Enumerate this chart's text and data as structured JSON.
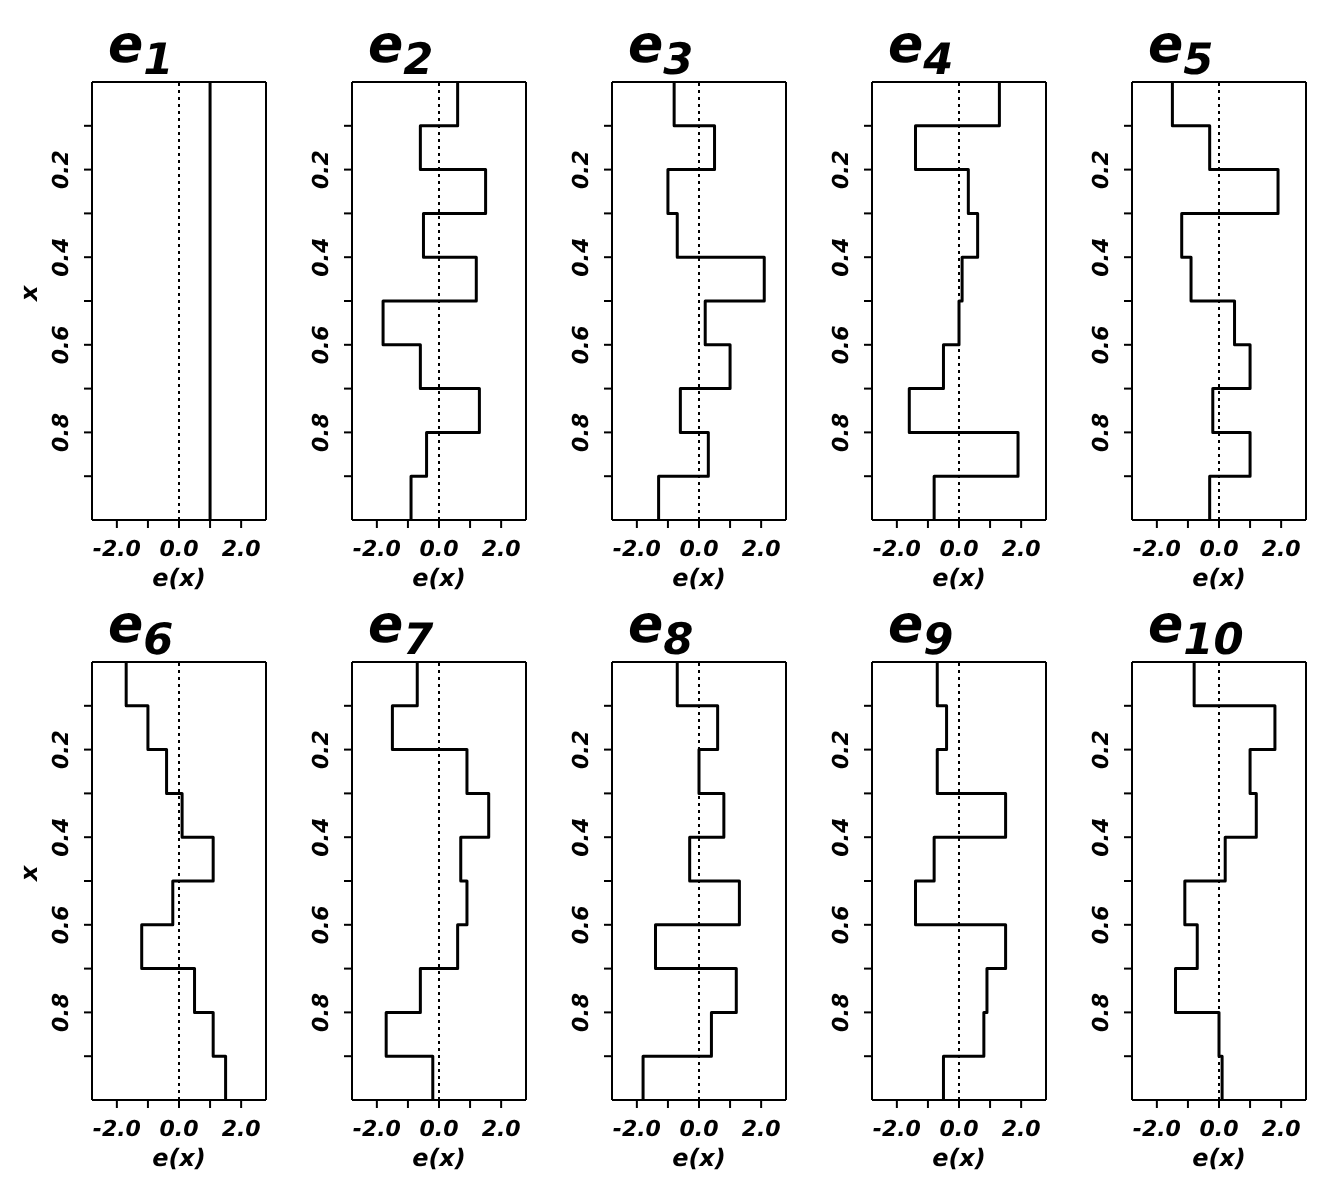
{
  "chart_data": [
    {
      "type": "step",
      "title": "e$_{1}$",
      "xlabel": "e(x)",
      "ylabel": "x",
      "orientation": "horizontal",
      "color": "#000000",
      "marker": "none",
      "x": [
        0,
        0.1,
        0.2,
        0.3,
        0.4,
        0.5,
        0.6,
        0.7,
        0.8,
        0.9,
        1.0
      ],
      "values": [
        1.0,
        1.0,
        1.0,
        1.0,
        1.0,
        1.0,
        1.0,
        1.0,
        1.0,
        1.0,
        1.0
      ],
      "xlim": [
        -2.8,
        2.8
      ],
      "xticks": [
        {
          "value": -2,
          "label": "-2.0"
        },
        {
          "value": -1,
          "label": null
        },
        {
          "value": 0,
          "label": "0.0"
        },
        {
          "value": 1,
          "label": null
        },
        {
          "value": 2,
          "label": "2.0"
        }
      ],
      "ylim": [
        1,
        0
      ],
      "yticks": [
        {
          "value": 0.1,
          "label": null
        },
        0.2,
        {
          "value": 0.3,
          "label": null
        },
        0.4,
        {
          "value": 0.5,
          "label": null
        },
        0.6,
        {
          "value": 0.7,
          "label": null
        },
        0.8,
        {
          "value": 0.9,
          "label": null
        }
      ],
      "ref_lines": [
        {
          "axis": "x",
          "value": 0,
          "line_style": "dotted"
        }
      ]
    },
    {
      "type": "step",
      "title": "e$_{2}$",
      "xlabel": "e(x)",
      "orientation": "horizontal",
      "color": "#000000",
      "marker": "none",
      "x": [
        0,
        0.1,
        0.2,
        0.3,
        0.4,
        0.5,
        0.6,
        0.7,
        0.8,
        0.9,
        1.0
      ],
      "values": [
        0.6,
        -0.6,
        1.5,
        -0.5,
        1.2,
        -1.8,
        -0.6,
        1.3,
        -0.4,
        -0.9,
        -0.9
      ],
      "xlim": [
        -2.8,
        2.8
      ],
      "xticks": [
        {
          "value": -2,
          "label": "-2.0"
        },
        {
          "value": -1,
          "label": null
        },
        {
          "value": 0,
          "label": "0.0"
        },
        {
          "value": 1,
          "label": null
        },
        {
          "value": 2,
          "label": "2.0"
        }
      ],
      "ylim": [
        1,
        0
      ],
      "yticks": [
        {
          "value": 0.1,
          "label": null
        },
        0.2,
        {
          "value": 0.3,
          "label": null
        },
        0.4,
        {
          "value": 0.5,
          "label": null
        },
        0.6,
        {
          "value": 0.7,
          "label": null
        },
        0.8,
        {
          "value": 0.9,
          "label": null
        }
      ],
      "ref_lines": [
        {
          "axis": "x",
          "value": 0,
          "line_style": "dotted"
        }
      ]
    },
    {
      "type": "step",
      "title": "e$_{3}$",
      "xlabel": "e(x)",
      "orientation": "horizontal",
      "color": "#000000",
      "marker": "none",
      "x": [
        0,
        0.1,
        0.2,
        0.3,
        0.4,
        0.5,
        0.6,
        0.7,
        0.8,
        0.9,
        1.0
      ],
      "values": [
        -0.8,
        0.5,
        -1.0,
        -0.7,
        2.1,
        0.2,
        1.0,
        -0.6,
        0.3,
        -1.3,
        -1.3
      ],
      "xlim": [
        -2.8,
        2.8
      ],
      "xticks": [
        {
          "value": -2,
          "label": "-2.0"
        },
        {
          "value": -1,
          "label": null
        },
        {
          "value": 0,
          "label": "0.0"
        },
        {
          "value": 1,
          "label": null
        },
        {
          "value": 2,
          "label": "2.0"
        }
      ],
      "ylim": [
        1,
        0
      ],
      "yticks": [
        {
          "value": 0.1,
          "label": null
        },
        0.2,
        {
          "value": 0.3,
          "label": null
        },
        0.4,
        {
          "value": 0.5,
          "label": null
        },
        0.6,
        {
          "value": 0.7,
          "label": null
        },
        0.8,
        {
          "value": 0.9,
          "label": null
        }
      ],
      "ref_lines": [
        {
          "axis": "x",
          "value": 0,
          "line_style": "dotted"
        }
      ]
    },
    {
      "type": "step",
      "title": "e$_{4}$",
      "xlabel": "e(x)",
      "orientation": "horizontal",
      "color": "#000000",
      "marker": "none",
      "x": [
        0,
        0.1,
        0.2,
        0.3,
        0.4,
        0.5,
        0.6,
        0.7,
        0.8,
        0.9,
        1.0
      ],
      "values": [
        1.3,
        -1.4,
        0.3,
        0.6,
        0.1,
        0.0,
        -0.5,
        -1.6,
        1.9,
        -0.8,
        -0.8
      ],
      "xlim": [
        -2.8,
        2.8
      ],
      "xticks": [
        {
          "value": -2,
          "label": "-2.0"
        },
        {
          "value": -1,
          "label": null
        },
        {
          "value": 0,
          "label": "0.0"
        },
        {
          "value": 1,
          "label": null
        },
        {
          "value": 2,
          "label": "2.0"
        }
      ],
      "ylim": [
        1,
        0
      ],
      "yticks": [
        {
          "value": 0.1,
          "label": null
        },
        0.2,
        {
          "value": 0.3,
          "label": null
        },
        0.4,
        {
          "value": 0.5,
          "label": null
        },
        0.6,
        {
          "value": 0.7,
          "label": null
        },
        0.8,
        {
          "value": 0.9,
          "label": null
        }
      ],
      "ref_lines": [
        {
          "axis": "x",
          "value": 0,
          "line_style": "dotted"
        }
      ]
    },
    {
      "type": "step",
      "title": "e$_{5}$",
      "xlabel": "e(x)",
      "orientation": "horizontal",
      "color": "#000000",
      "marker": "none",
      "x": [
        0,
        0.1,
        0.2,
        0.3,
        0.4,
        0.5,
        0.6,
        0.7,
        0.8,
        0.9,
        1.0
      ],
      "values": [
        -1.5,
        -0.3,
        1.9,
        -1.2,
        -0.9,
        0.5,
        1.0,
        -0.2,
        1.0,
        -0.3,
        -0.3
      ],
      "xlim": [
        -2.8,
        2.8
      ],
      "xticks": [
        {
          "value": -2,
          "label": "-2.0"
        },
        {
          "value": -1,
          "label": null
        },
        {
          "value": 0,
          "label": "0.0"
        },
        {
          "value": 1,
          "label": null
        },
        {
          "value": 2,
          "label": "2.0"
        }
      ],
      "ylim": [
        1,
        0
      ],
      "yticks": [
        {
          "value": 0.1,
          "label": null
        },
        0.2,
        {
          "value": 0.3,
          "label": null
        },
        0.4,
        {
          "value": 0.5,
          "label": null
        },
        0.6,
        {
          "value": 0.7,
          "label": null
        },
        0.8,
        {
          "value": 0.9,
          "label": null
        }
      ],
      "ref_lines": [
        {
          "axis": "x",
          "value": 0,
          "line_style": "dotted"
        }
      ]
    },
    {
      "type": "step",
      "title": "e$_{6}$",
      "xlabel": "e(x)",
      "ylabel": "x",
      "orientation": "horizontal",
      "color": "#000000",
      "marker": "none",
      "x": [
        0,
        0.1,
        0.2,
        0.3,
        0.4,
        0.5,
        0.6,
        0.7,
        0.8,
        0.9,
        1.0
      ],
      "values": [
        -1.7,
        -1.0,
        -0.4,
        0.1,
        1.1,
        -0.2,
        -1.2,
        0.5,
        1.1,
        1.5,
        1.5
      ],
      "xlim": [
        -2.8,
        2.8
      ],
      "xticks": [
        {
          "value": -2,
          "label": "-2.0"
        },
        {
          "value": -1,
          "label": null
        },
        {
          "value": 0,
          "label": "0.0"
        },
        {
          "value": 1,
          "label": null
        },
        {
          "value": 2,
          "label": "2.0"
        }
      ],
      "ylim": [
        1,
        0
      ],
      "yticks": [
        {
          "value": 0.1,
          "label": null
        },
        0.2,
        {
          "value": 0.3,
          "label": null
        },
        0.4,
        {
          "value": 0.5,
          "label": null
        },
        0.6,
        {
          "value": 0.7,
          "label": null
        },
        0.8,
        {
          "value": 0.9,
          "label": null
        }
      ],
      "ref_lines": [
        {
          "axis": "x",
          "value": 0,
          "line_style": "dotted"
        }
      ]
    },
    {
      "type": "step",
      "title": "e$_{7}$",
      "xlabel": "e(x)",
      "orientation": "horizontal",
      "color": "#000000",
      "marker": "none",
      "x": [
        0,
        0.1,
        0.2,
        0.3,
        0.4,
        0.5,
        0.6,
        0.7,
        0.8,
        0.9,
        1.0
      ],
      "values": [
        -0.7,
        -1.5,
        0.9,
        1.6,
        0.7,
        0.9,
        0.6,
        -0.6,
        -1.7,
        -0.2,
        -0.2
      ],
      "xlim": [
        -2.8,
        2.8
      ],
      "xticks": [
        {
          "value": -2,
          "label": "-2.0"
        },
        {
          "value": -1,
          "label": null
        },
        {
          "value": 0,
          "label": "0.0"
        },
        {
          "value": 1,
          "label": null
        },
        {
          "value": 2,
          "label": "2.0"
        }
      ],
      "ylim": [
        1,
        0
      ],
      "yticks": [
        {
          "value": 0.1,
          "label": null
        },
        0.2,
        {
          "value": 0.3,
          "label": null
        },
        0.4,
        {
          "value": 0.5,
          "label": null
        },
        0.6,
        {
          "value": 0.7,
          "label": null
        },
        0.8,
        {
          "value": 0.9,
          "label": null
        }
      ],
      "ref_lines": [
        {
          "axis": "x",
          "value": 0,
          "line_style": "dotted"
        }
      ]
    },
    {
      "type": "step",
      "title": "e$_{8}$",
      "xlabel": "e(x)",
      "orientation": "horizontal",
      "color": "#000000",
      "marker": "none",
      "x": [
        0,
        0.1,
        0.2,
        0.3,
        0.4,
        0.5,
        0.6,
        0.7,
        0.8,
        0.9,
        1.0
      ],
      "values": [
        -0.7,
        0.6,
        0.0,
        0.8,
        -0.3,
        1.3,
        -1.4,
        1.2,
        0.4,
        -1.8,
        -1.8
      ],
      "xlim": [
        -2.8,
        2.8
      ],
      "xticks": [
        {
          "value": -2,
          "label": "-2.0"
        },
        {
          "value": -1,
          "label": null
        },
        {
          "value": 0,
          "label": "0.0"
        },
        {
          "value": 1,
          "label": null
        },
        {
          "value": 2,
          "label": "2.0"
        }
      ],
      "ylim": [
        1,
        0
      ],
      "yticks": [
        {
          "value": 0.1,
          "label": null
        },
        0.2,
        {
          "value": 0.3,
          "label": null
        },
        0.4,
        {
          "value": 0.5,
          "label": null
        },
        0.6,
        {
          "value": 0.7,
          "label": null
        },
        0.8,
        {
          "value": 0.9,
          "label": null
        }
      ],
      "ref_lines": [
        {
          "axis": "x",
          "value": 0,
          "line_style": "dotted"
        }
      ]
    },
    {
      "type": "step",
      "title": "e$_{9}$",
      "xlabel": "e(x)",
      "orientation": "horizontal",
      "color": "#000000",
      "marker": "none",
      "x": [
        0,
        0.1,
        0.2,
        0.3,
        0.4,
        0.5,
        0.6,
        0.7,
        0.8,
        0.9,
        1.0
      ],
      "values": [
        -0.7,
        -0.4,
        -0.7,
        1.5,
        -0.8,
        -1.4,
        1.5,
        0.9,
        0.8,
        -0.5,
        -0.5
      ],
      "xlim": [
        -2.8,
        2.8
      ],
      "xticks": [
        {
          "value": -2,
          "label": "-2.0"
        },
        {
          "value": -1,
          "label": null
        },
        {
          "value": 0,
          "label": "0.0"
        },
        {
          "value": 1,
          "label": null
        },
        {
          "value": 2,
          "label": "2.0"
        }
      ],
      "ylim": [
        1,
        0
      ],
      "yticks": [
        {
          "value": 0.1,
          "label": null
        },
        0.2,
        {
          "value": 0.3,
          "label": null
        },
        0.4,
        {
          "value": 0.5,
          "label": null
        },
        0.6,
        {
          "value": 0.7,
          "label": null
        },
        0.8,
        {
          "value": 0.9,
          "label": null
        }
      ],
      "ref_lines": [
        {
          "axis": "x",
          "value": 0,
          "line_style": "dotted"
        }
      ]
    },
    {
      "type": "step",
      "title": "e$_{10}$",
      "xlabel": "e(x)",
      "orientation": "horizontal",
      "color": "#000000",
      "marker": "none",
      "x": [
        0,
        0.1,
        0.2,
        0.3,
        0.4,
        0.5,
        0.6,
        0.7,
        0.8,
        0.9,
        1.0
      ],
      "values": [
        -0.8,
        1.8,
        1.0,
        1.2,
        0.2,
        -1.1,
        -0.7,
        -1.4,
        0.0,
        0.1,
        0.1
      ],
      "xlim": [
        -2.8,
        2.8
      ],
      "xticks": [
        {
          "value": -2,
          "label": "-2.0"
        },
        {
          "value": -1,
          "label": null
        },
        {
          "value": 0,
          "label": "0.0"
        },
        {
          "value": 1,
          "label": null
        },
        {
          "value": 2,
          "label": "2.0"
        }
      ],
      "ylim": [
        1,
        0
      ],
      "yticks": [
        {
          "value": 0.1,
          "label": null
        },
        0.2,
        {
          "value": 0.3,
          "label": null
        },
        0.4,
        {
          "value": 0.5,
          "label": null
        },
        0.6,
        {
          "value": 0.7,
          "label": null
        },
        0.8,
        {
          "value": 0.9,
          "label": null
        }
      ],
      "ref_lines": [
        {
          "axis": "x",
          "value": 0,
          "line_style": "dotted"
        }
      ]
    }
  ]
}
